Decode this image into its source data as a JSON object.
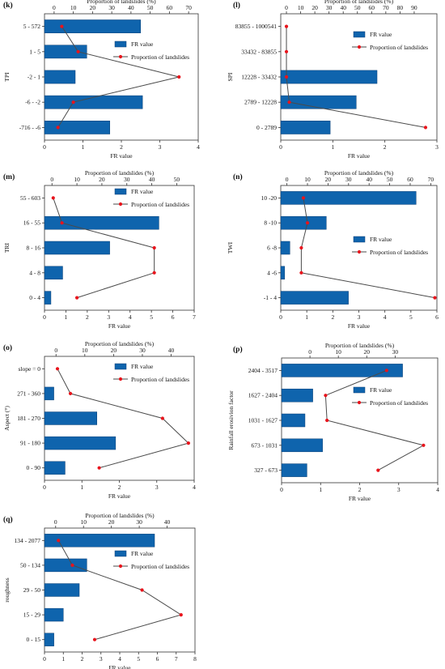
{
  "legend": {
    "bar_label": "FR value",
    "line_label": "Proportion of landslides"
  },
  "colors": {
    "bar_fill": "#0f64ad",
    "bar_stroke": "#0a3f75",
    "line": "#4a4a4a",
    "marker": "#e8141c",
    "axis": "#333333"
  },
  "chart_data": [
    {
      "id": "k",
      "type": "bar",
      "panel_label": "(k)",
      "ylabel": "TPI",
      "xlabel": "FR value",
      "top_label": "Proportion of landslides (%)",
      "categories": [
        "5 - 572",
        "1 - 5",
        "-2 - 1",
        "-6 - -2",
        "-716 - -6"
      ],
      "fr_values": [
        2.5,
        1.1,
        0.8,
        2.55,
        1.7
      ],
      "proportions": [
        4,
        12.5,
        65,
        10,
        2
      ],
      "xlim": [
        0,
        4
      ],
      "xticks": [
        "0",
        "1",
        "2",
        "3",
        "4"
      ],
      "toplim": [
        -5,
        75
      ],
      "topticks": [
        "0",
        "10",
        "20",
        "30",
        "40",
        "50",
        "60",
        "70"
      ]
    },
    {
      "id": "l",
      "type": "bar",
      "panel_label": "(l)",
      "ylabel": "SPI",
      "xlabel": "FR value",
      "top_label": "Proportion of landslides (%)",
      "categories": [
        "83855 - 1000541",
        "33432 - 83855",
        "12228 - 33432",
        "2789 - 12228",
        "0 - 2789"
      ],
      "fr_values": [
        0,
        0,
        1.85,
        1.45,
        0.95
      ],
      "proportions": [
        0,
        0,
        0,
        2,
        98
      ],
      "xlim": [
        0,
        3
      ],
      "xticks": [
        "0",
        "1",
        "2",
        "3"
      ],
      "toplim": [
        -4,
        106
      ],
      "topticks": [
        "0",
        "10",
        "20",
        "30",
        "40",
        "50",
        "60",
        "70",
        "80",
        "90"
      ]
    },
    {
      "id": "m",
      "type": "bar",
      "panel_label": "(m)",
      "ylabel": "TRI",
      "xlabel": "FR value",
      "top_label": "Proportion of landslides (%)",
      "categories": [
        "55 - 603",
        "16 - 55",
        "8 - 16",
        "4 - 8",
        "0 - 4"
      ],
      "fr_values": [
        0,
        5.35,
        3.05,
        0.85,
        0.3
      ],
      "proportions": [
        0.5,
        4,
        41,
        41,
        10
      ],
      "xlim": [
        0,
        7
      ],
      "xticks": [
        "0",
        "1",
        "2",
        "3",
        "4",
        "5",
        "6",
        "7"
      ],
      "toplim": [
        -3,
        57
      ],
      "topticks": [
        "0",
        "10",
        "20",
        "30",
        "40",
        "50"
      ]
    },
    {
      "id": "n",
      "type": "bar",
      "panel_label": "(n)",
      "ylabel": "TWI",
      "xlabel": "FR value",
      "top_label": "Proportion of landslides (%)",
      "categories": [
        "10 -20",
        "8 -10",
        "6 -8",
        "4 -6",
        "-1 - 4"
      ],
      "fr_values": [
        5.2,
        1.75,
        0.35,
        0.15,
        2.6
      ],
      "proportions": [
        8,
        10,
        7,
        7,
        72
      ],
      "xlim": [
        0,
        6
      ],
      "xticks": [
        "0",
        "1",
        "2",
        "3",
        "4",
        "5",
        "6"
      ],
      "toplim": [
        -3,
        73
      ],
      "topticks": [
        "0",
        "10",
        "20",
        "30",
        "40",
        "50",
        "60",
        "70"
      ]
    },
    {
      "id": "o",
      "type": "bar",
      "panel_label": "(o)",
      "ylabel": "Aspect (°)",
      "xlabel": "FR value",
      "top_label": "Proportion of landslides (%)",
      "categories": [
        "slope = 0",
        "271 - 360",
        "181 - 270",
        "91 - 180",
        "0 - 90"
      ],
      "fr_values": [
        0,
        0.25,
        1.4,
        1.9,
        0.55
      ],
      "proportions": [
        0.5,
        5,
        37,
        46,
        15
      ],
      "xlim": [
        0,
        4
      ],
      "xticks": [
        "0",
        "1",
        "2",
        "3",
        "4"
      ],
      "toplim": [
        -4,
        48
      ],
      "topticks": [
        "0",
        "10",
        "20",
        "30",
        "40"
      ]
    },
    {
      "id": "p",
      "type": "bar",
      "panel_label": "(p)",
      "ylabel": "Rainfall erosivion factor",
      "xlabel": "FR value",
      "top_label": "Proportion of landslides (%)",
      "categories": [
        "2404 - 3517",
        "1627 - 2404",
        "1031 - 1627",
        "673 - 1031",
        "327 - 673"
      ],
      "fr_values": [
        3.1,
        0.8,
        0.6,
        1.05,
        0.65
      ],
      "proportions": [
        27,
        5.5,
        6,
        40,
        24
      ],
      "xlim": [
        0,
        4
      ],
      "xticks": [
        "0",
        "1",
        "2",
        "3",
        "4"
      ],
      "toplim": [
        -10,
        45
      ],
      "topticks": [
        "0",
        "10",
        "20",
        "30"
      ]
    },
    {
      "id": "q",
      "type": "bar",
      "panel_label": "(q)",
      "ylabel": "roughness",
      "xlabel": "FR value",
      "top_label": "Proportion of landslides (%)",
      "categories": [
        "134 - 2077",
        "50 - 134",
        "29 - 50",
        "15 - 29",
        "0 - 15"
      ],
      "fr_values": [
        5.85,
        2.25,
        1.85,
        1.0,
        0.5
      ],
      "proportions": [
        1,
        6,
        31,
        45,
        14
      ],
      "xlim": [
        0,
        8
      ],
      "xticks": [
        "0",
        "1",
        "2",
        "3",
        "4",
        "5",
        "6",
        "7",
        "8"
      ],
      "toplim": [
        -4,
        50
      ],
      "topticks": [
        "0",
        "10",
        "20",
        "30",
        "40"
      ]
    }
  ]
}
